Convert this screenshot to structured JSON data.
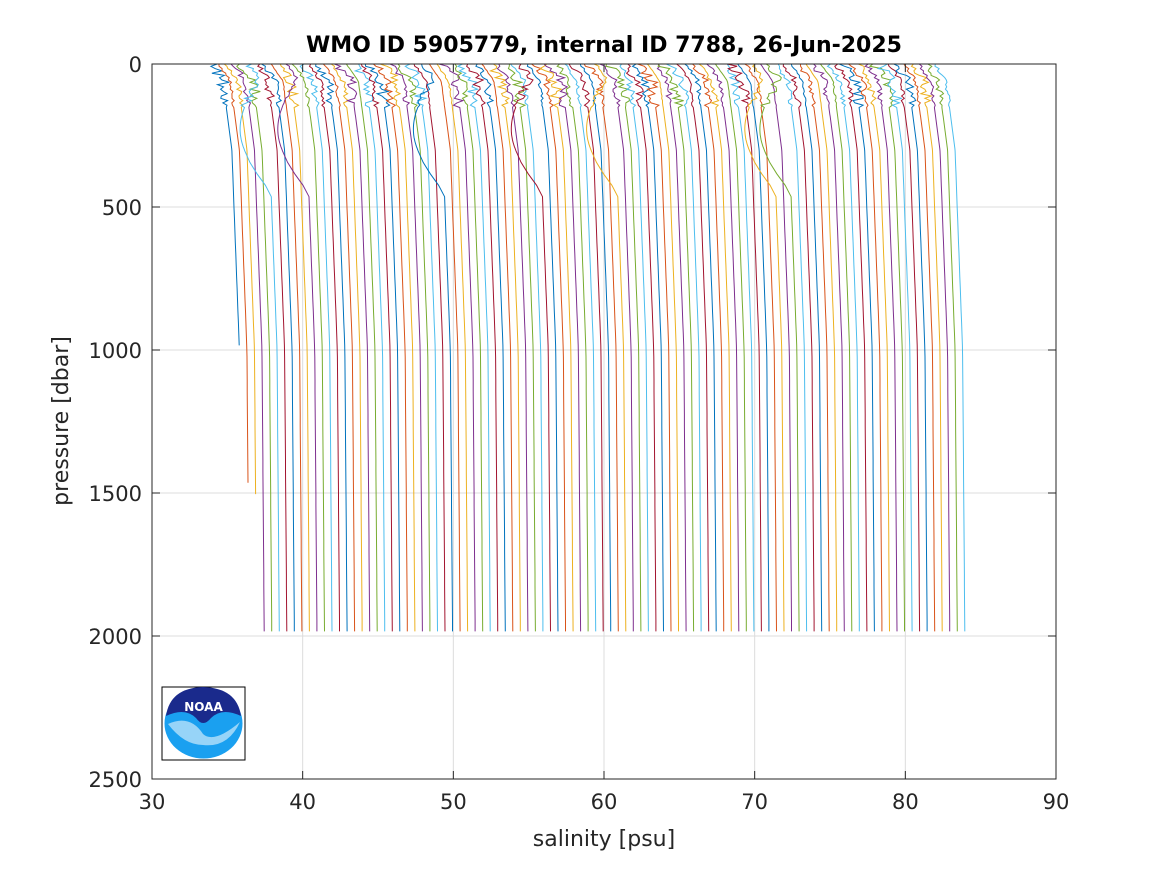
{
  "chart_data": {
    "type": "line",
    "title": "WMO ID 5905779, internal ID 7788, 26-Jun-2025",
    "xlabel": "salinity [psu]",
    "ylabel": "pressure [dbar]",
    "xlim": [
      30,
      90
    ],
    "ylim": [
      0,
      2500
    ],
    "y_reversed": true,
    "grid": true,
    "xticks": [
      30,
      40,
      50,
      60,
      70,
      80,
      90
    ],
    "yticks": [
      0,
      500,
      1000,
      1500,
      2000,
      2500
    ],
    "xtick_labels": [
      "30",
      "40",
      "50",
      "60",
      "70",
      "80",
      "90"
    ],
    "ytick_labels": [
      "0",
      "500",
      "1000",
      "1500",
      "2000",
      "2500"
    ],
    "profile_offset_psu": 0.5,
    "profiles_first_surface_salinity": 34.5,
    "profile_count": 97,
    "profile_max_pressure_first": [
      1000,
      1500,
      1520
    ],
    "profile_max_pressure_typical": 2010,
    "series_colors": [
      "#0072BD",
      "#D95319",
      "#EDB120",
      "#7E2F8E",
      "#77AC30",
      "#4DBEEE",
      "#A2142F"
    ]
  },
  "logo": {
    "text": "NOAA",
    "colors": {
      "navy": "#1a2a8c",
      "sky": "#1aa0f0"
    }
  }
}
